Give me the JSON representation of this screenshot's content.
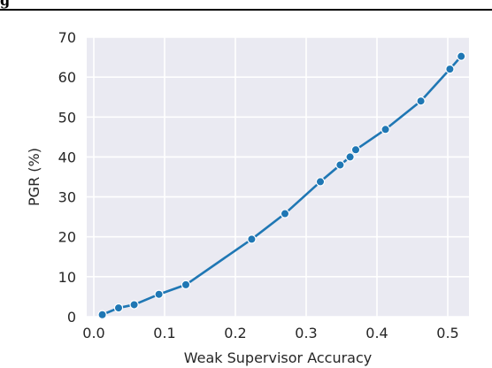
{
  "header_fragment": "g",
  "chart_data": {
    "type": "line",
    "title": "",
    "xlabel": "Weak Supervisor Accuracy",
    "ylabel": "PGR (%)",
    "xlim": [
      -0.01,
      0.53
    ],
    "ylim": [
      0,
      70
    ],
    "xticks": [
      0.0,
      0.1,
      0.2,
      0.3,
      0.4,
      0.5
    ],
    "xtick_labels": [
      "0.0",
      "0.1",
      "0.2",
      "0.3",
      "0.4",
      "0.5"
    ],
    "yticks": [
      0,
      10,
      20,
      30,
      40,
      50,
      60,
      70
    ],
    "ytick_labels": [
      "0",
      "10",
      "20",
      "30",
      "40",
      "50",
      "60",
      "70"
    ],
    "grid": true,
    "background": "#eaeaf2",
    "line_color": "#1f77b4",
    "series": [
      {
        "x": [
          0.012,
          0.035,
          0.057,
          0.092,
          0.13,
          0.223,
          0.27,
          0.32,
          0.348,
          0.362,
          0.37,
          0.412,
          0.462,
          0.503,
          0.519
        ],
        "y": [
          0.5,
          2.2,
          3.0,
          5.6,
          8.0,
          19.4,
          25.8,
          33.8,
          38.0,
          40.0,
          41.8,
          46.9,
          54.0,
          62.0,
          65.2
        ]
      }
    ]
  }
}
